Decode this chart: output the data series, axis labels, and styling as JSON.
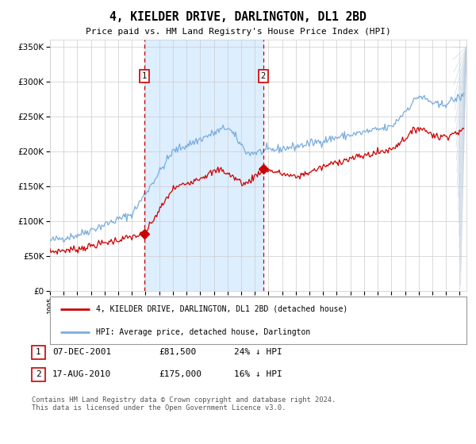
{
  "title": "4, KIELDER DRIVE, DARLINGTON, DL1 2BD",
  "subtitle": "Price paid vs. HM Land Registry's House Price Index (HPI)",
  "legend_line1": "4, KIELDER DRIVE, DARLINGTON, DL1 2BD (detached house)",
  "legend_line2": "HPI: Average price, detached house, Darlington",
  "annotation1_date": "07-DEC-2001",
  "annotation1_price": "£81,500",
  "annotation1_hpi": "24% ↓ HPI",
  "annotation2_date": "17-AUG-2010",
  "annotation2_price": "£175,000",
  "annotation2_hpi": "16% ↓ HPI",
  "footer": "Contains HM Land Registry data © Crown copyright and database right 2024.\nThis data is licensed under the Open Government Licence v3.0.",
  "hpi_color": "#7aaddd",
  "price_color": "#cc0000",
  "shade_color": "#ddeeff",
  "grid_color": "#cccccc",
  "bg_color": "#ffffff",
  "ylim": [
    0,
    360000
  ],
  "yticks": [
    0,
    50000,
    100000,
    150000,
    200000,
    250000,
    300000,
    350000
  ],
  "sale1_year": 2001.92,
  "sale1_price": 81500,
  "sale2_year": 2010.62,
  "sale2_price": 175000
}
